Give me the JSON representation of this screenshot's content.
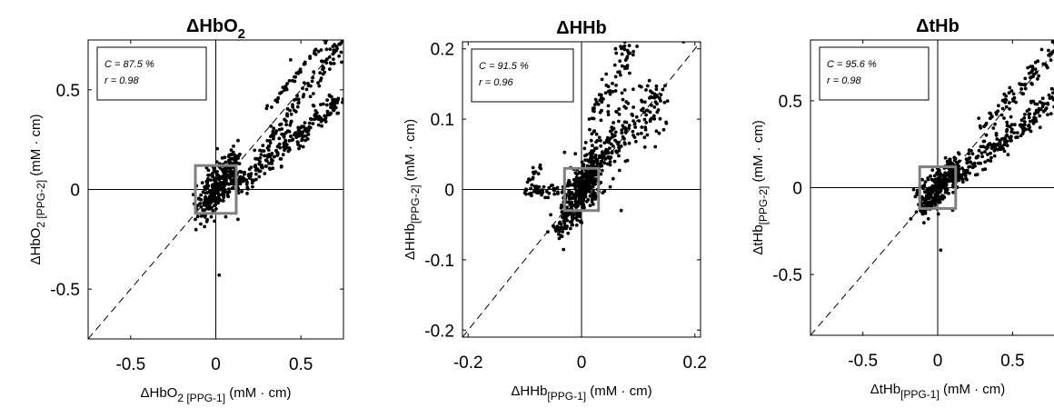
{
  "chart_data": [
    {
      "type": "scatter",
      "title": "HbO2",
      "xlabel": {
        "base": "HbO",
        "subnum": "2",
        "sub": " [PPG-1]",
        "unit": " (mM · cm)"
      },
      "ylabel": {
        "base": "HbO",
        "subnum": "2",
        "sub": " [PPG-2]",
        "unit": " (mM · cm)"
      },
      "xlim": [
        -0.75,
        0.75
      ],
      "ylim": [
        -0.75,
        0.75
      ],
      "xticks": [
        -0.5,
        0,
        0.5
      ],
      "yticks": [
        -0.5,
        0,
        0.5
      ],
      "xtick_labels": [
        "-0.5",
        "0",
        "0.5"
      ],
      "ytick_labels": [
        "-0.5",
        "0",
        "0.5"
      ],
      "stats": [
        "C = 87.5 %",
        "r = 0.98"
      ],
      "box_halfwidth": 0.12,
      "identity_line": true,
      "clusters": [
        {
          "x0": -0.08,
          "x1": 0.12,
          "y0": -0.08,
          "y1": 0.12,
          "n": 320,
          "spread": 0.05
        },
        {
          "x0": 0.12,
          "x1": 0.72,
          "y0": 0.0,
          "y1": 0.45,
          "n": 220,
          "spread": 0.03
        },
        {
          "x0": 0.2,
          "x1": 0.75,
          "y0": 0.1,
          "y1": 0.75,
          "n": 120,
          "spread": 0.025
        },
        {
          "x0": 0.3,
          "x1": 0.65,
          "y0": 0.4,
          "y1": 0.75,
          "n": 40,
          "spread": 0.01
        }
      ],
      "points": [
        [
          0.02,
          -0.43
        ],
        [
          -0.12,
          -0.15
        ],
        [
          0.13,
          -0.15
        ],
        [
          0.62,
          0.76
        ],
        [
          0.44,
          0.65
        ]
      ]
    },
    {
      "type": "scatter",
      "title": "HHb",
      "xlabel": {
        "base": "HHb",
        "subnum": "",
        "sub": "[PPG-1]",
        "unit": " (mM · cm)"
      },
      "ylabel": {
        "base": "HHb",
        "subnum": "",
        "sub": "[PPG-2]",
        "unit": " (mM · cm)"
      },
      "xlim": [
        -0.21,
        0.21
      ],
      "ylim": [
        -0.21,
        0.21
      ],
      "xticks": [
        -0.2,
        0,
        0.2
      ],
      "yticks": [
        -0.2,
        -0.1,
        0,
        0.1,
        0.2
      ],
      "xtick_labels": [
        "-0.2",
        "0",
        "0.2"
      ],
      "ytick_labels": [
        "-0.2",
        "-0.1",
        "0",
        "0.1",
        "0.2"
      ],
      "stats": [
        "C = 91.5 %",
        "r = 0.96"
      ],
      "box_halfwidth": 0.03,
      "identity_line": true,
      "clusters": [
        {
          "x0": -0.025,
          "x1": 0.025,
          "y0": -0.03,
          "y1": 0.03,
          "n": 360,
          "spread": 0.015
        },
        {
          "x0": -0.1,
          "x1": -0.03,
          "y0": -0.005,
          "y1": 0.0,
          "n": 50,
          "spread": 0.004
        },
        {
          "x0": 0.0,
          "x1": 0.14,
          "y0": 0.02,
          "y1": 0.13,
          "n": 240,
          "spread": 0.02
        },
        {
          "x0": 0.02,
          "x1": 0.09,
          "y0": 0.1,
          "y1": 0.21,
          "n": 70,
          "spread": 0.012
        },
        {
          "x0": -0.05,
          "x1": 0.0,
          "y0": -0.06,
          "y1": -0.03,
          "n": 50,
          "spread": 0.008
        },
        {
          "x0": -0.1,
          "x1": -0.06,
          "y0": 0.01,
          "y1": 0.04,
          "n": 14,
          "spread": 0.004
        }
      ],
      "points": [
        [
          0.18,
          0.21
        ],
        [
          0.12,
          0.13
        ],
        [
          0.06,
          0.2
        ],
        [
          0.07,
          -0.03
        ]
      ]
    },
    {
      "type": "scatter",
      "title": "tHb",
      "xlabel": {
        "base": "tHb",
        "subnum": "",
        "sub": "[PPG-1]",
        "unit": " (mM · cm)"
      },
      "ylabel": {
        "base": "tHb",
        "subnum": "",
        "sub": "[PPG-2]",
        "unit": " (mM · cm)"
      },
      "xlim": [
        -0.85,
        0.85
      ],
      "ylim": [
        -0.85,
        0.85
      ],
      "xticks": [
        -0.5,
        0,
        0.5
      ],
      "yticks": [
        -0.5,
        0,
        0.5
      ],
      "xtick_labels": [
        "-0.5",
        "0",
        "0.5"
      ],
      "ytick_labels": [
        "-0.5",
        "0",
        "0.5"
      ],
      "stats": [
        "C = 95.6 %",
        "r = 0.98"
      ],
      "box_halfwidth": 0.12,
      "identity_line": true,
      "clusters": [
        {
          "x0": -0.1,
          "x1": 0.12,
          "y0": -0.1,
          "y1": 0.12,
          "n": 320,
          "spread": 0.05
        },
        {
          "x0": 0.1,
          "x1": 0.85,
          "y0": 0.05,
          "y1": 0.55,
          "n": 220,
          "spread": 0.04
        },
        {
          "x0": 0.3,
          "x1": 0.85,
          "y0": 0.35,
          "y1": 0.85,
          "n": 90,
          "spread": 0.03
        }
      ],
      "points": [
        [
          0.02,
          -0.36
        ],
        [
          -0.18,
          -0.18
        ],
        [
          0.1,
          -0.13
        ]
      ]
    }
  ]
}
